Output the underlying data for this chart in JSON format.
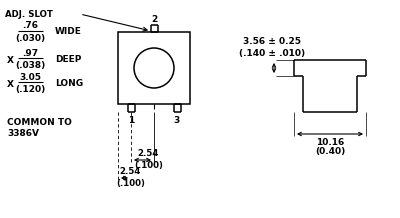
{
  "bg_color": "#ffffff",
  "line_color": "#000000",
  "figsize": [
    4.0,
    2.18
  ],
  "dpi": 100,
  "labels": {
    "adj_slot": "ADJ. SLOT",
    "wide_frac": ".76",
    "wide_dec": "(.030)",
    "wide_label": "WIDE",
    "x1": "X",
    "deep_frac": ".97",
    "deep_dec": "(.038)",
    "deep_label": "DEEP",
    "x2": "X",
    "long_frac": "3.05",
    "long_dec": "(.120)",
    "long_label": "LONG",
    "common_to": "COMMON TO",
    "v3386": "3386V",
    "dim_top": "3.56 ± 0.25",
    "dim_top2": "(.140 ± .010)",
    "dim_bot": "10.16",
    "dim_bot2": "(0.40)",
    "dim_r1": "2.54",
    "dim_r1b": "(.100)",
    "dim_r2": "2.54",
    "dim_r2b": "(.100)",
    "pin1": "1",
    "pin2": "2",
    "pin3": "3"
  }
}
